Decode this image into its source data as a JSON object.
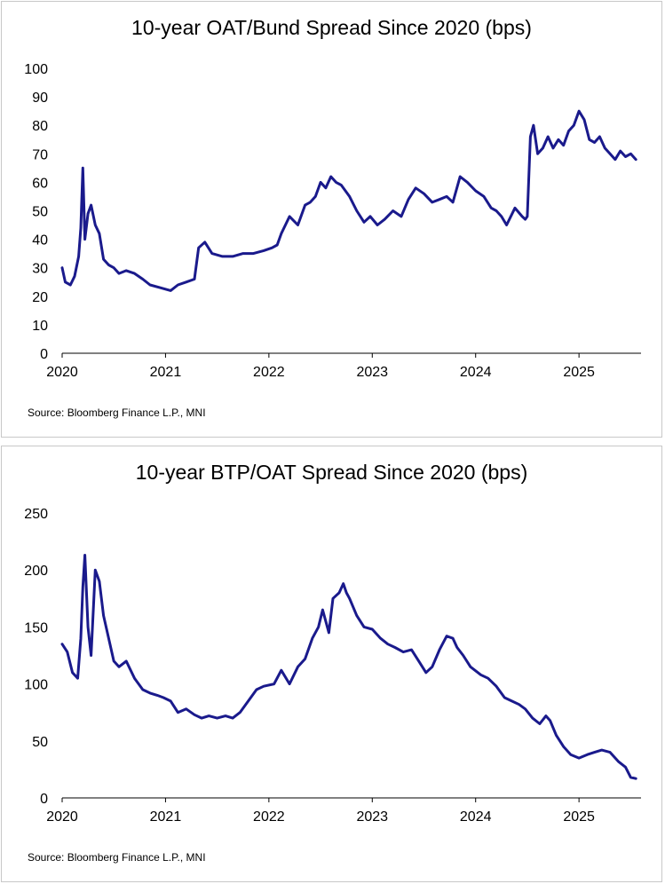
{
  "source_note": "Source: Bloomberg Finance L.P., MNI",
  "colors": {
    "series_line": "#1a1a8c",
    "axis": "#000000",
    "panel_border": "#c8c8c8"
  },
  "chart_data": [
    {
      "type": "line",
      "title": "10-year OAT/Bund Spread Since 2020 (bps)",
      "xlabel": "",
      "ylabel": "",
      "x_ticks": [
        "2020",
        "2021",
        "2022",
        "2023",
        "2024",
        "2025"
      ],
      "xlim": [
        2020.0,
        2025.6
      ],
      "y_ticks": [
        0,
        10,
        20,
        30,
        40,
        50,
        60,
        70,
        80,
        90,
        100
      ],
      "ylim": [
        0,
        100
      ],
      "grid": false,
      "series": [
        {
          "x": [
            2020.0,
            2020.03,
            2020.08,
            2020.12,
            2020.16,
            2020.18,
            2020.2,
            2020.22,
            2020.25,
            2020.28,
            2020.32,
            2020.36,
            2020.4,
            2020.45,
            2020.5,
            2020.55,
            2020.62,
            2020.7,
            2020.78,
            2020.85,
            2020.95,
            2021.05,
            2021.12,
            2021.2,
            2021.28,
            2021.32,
            2021.38,
            2021.45,
            2021.55,
            2021.65,
            2021.75,
            2021.85,
            2021.95,
            2022.03,
            2022.08,
            2022.12,
            2022.2,
            2022.28,
            2022.35,
            2022.4,
            2022.45,
            2022.5,
            2022.55,
            2022.6,
            2022.65,
            2022.7,
            2022.78,
            2022.85,
            2022.92,
            2022.98,
            2023.05,
            2023.12,
            2023.2,
            2023.28,
            2023.35,
            2023.42,
            2023.5,
            2023.58,
            2023.65,
            2023.72,
            2023.78,
            2023.85,
            2023.92,
            2024.0,
            2024.08,
            2024.15,
            2024.2,
            2024.25,
            2024.3,
            2024.38,
            2024.45,
            2024.48,
            2024.5,
            2024.53,
            2024.56,
            2024.6,
            2024.65,
            2024.7,
            2024.75,
            2024.8,
            2024.85,
            2024.9,
            2024.95,
            2025.0,
            2025.05,
            2025.1,
            2025.15,
            2025.2,
            2025.25,
            2025.3,
            2025.35,
            2025.4,
            2025.45,
            2025.5,
            2025.55
          ],
          "y": [
            30,
            25,
            24,
            27,
            34,
            44,
            65,
            40,
            49,
            52,
            45,
            42,
            33,
            31,
            30,
            28,
            29,
            28,
            26,
            24,
            23,
            22,
            24,
            25,
            26,
            37,
            39,
            35,
            34,
            34,
            35,
            35,
            36,
            37,
            38,
            42,
            48,
            45,
            52,
            53,
            55,
            60,
            58,
            62,
            60,
            59,
            55,
            50,
            46,
            48,
            45,
            47,
            50,
            48,
            54,
            58,
            56,
            53,
            54,
            55,
            53,
            62,
            60,
            57,
            55,
            51,
            50,
            48,
            45,
            51,
            48,
            47,
            48,
            76,
            80,
            70,
            72,
            76,
            72,
            75,
            73,
            78,
            80,
            85,
            82,
            75,
            74,
            76,
            72,
            70,
            68,
            71,
            69,
            70,
            68
          ]
        }
      ]
    },
    {
      "type": "line",
      "title": "10-year BTP/OAT Spread Since 2020 (bps)",
      "xlabel": "",
      "ylabel": "",
      "x_ticks": [
        "2020",
        "2021",
        "2022",
        "2023",
        "2024",
        "2025"
      ],
      "xlim": [
        2020.0,
        2025.6
      ],
      "y_ticks": [
        0,
        50,
        100,
        150,
        200,
        250
      ],
      "ylim": [
        0,
        250
      ],
      "grid": false,
      "series": [
        {
          "x": [
            2020.0,
            2020.05,
            2020.1,
            2020.15,
            2020.18,
            2020.2,
            2020.22,
            2020.25,
            2020.28,
            2020.32,
            2020.36,
            2020.4,
            2020.45,
            2020.5,
            2020.55,
            2020.62,
            2020.7,
            2020.78,
            2020.85,
            2020.92,
            2020.98,
            2021.05,
            2021.12,
            2021.2,
            2021.28,
            2021.35,
            2021.42,
            2021.5,
            2021.58,
            2021.65,
            2021.72,
            2021.8,
            2021.88,
            2021.95,
            2022.05,
            2022.12,
            2022.2,
            2022.28,
            2022.35,
            2022.42,
            2022.48,
            2022.52,
            2022.58,
            2022.62,
            2022.68,
            2022.72,
            2022.75,
            2022.78,
            2022.85,
            2022.92,
            2023.0,
            2023.08,
            2023.15,
            2023.22,
            2023.3,
            2023.38,
            2023.45,
            2023.52,
            2023.58,
            2023.65,
            2023.72,
            2023.78,
            2023.82,
            2023.88,
            2023.95,
            2024.05,
            2024.12,
            2024.2,
            2024.28,
            2024.35,
            2024.42,
            2024.48,
            2024.55,
            2024.62,
            2024.68,
            2024.72,
            2024.78,
            2024.85,
            2024.92,
            2025.0,
            2025.08,
            2025.15,
            2025.22,
            2025.3,
            2025.38,
            2025.45,
            2025.5,
            2025.55
          ],
          "y": [
            135,
            128,
            110,
            105,
            140,
            185,
            213,
            150,
            125,
            200,
            190,
            160,
            140,
            120,
            115,
            120,
            105,
            95,
            92,
            90,
            88,
            85,
            75,
            78,
            73,
            70,
            72,
            70,
            72,
            70,
            75,
            85,
            95,
            98,
            100,
            112,
            100,
            115,
            122,
            140,
            150,
            165,
            145,
            175,
            180,
            188,
            180,
            175,
            160,
            150,
            148,
            140,
            135,
            132,
            128,
            130,
            120,
            110,
            115,
            130,
            142,
            140,
            132,
            125,
            115,
            108,
            105,
            98,
            88,
            85,
            82,
            78,
            70,
            65,
            72,
            68,
            55,
            45,
            38,
            35,
            38,
            40,
            42,
            40,
            32,
            27,
            18,
            17
          ]
        }
      ]
    }
  ]
}
